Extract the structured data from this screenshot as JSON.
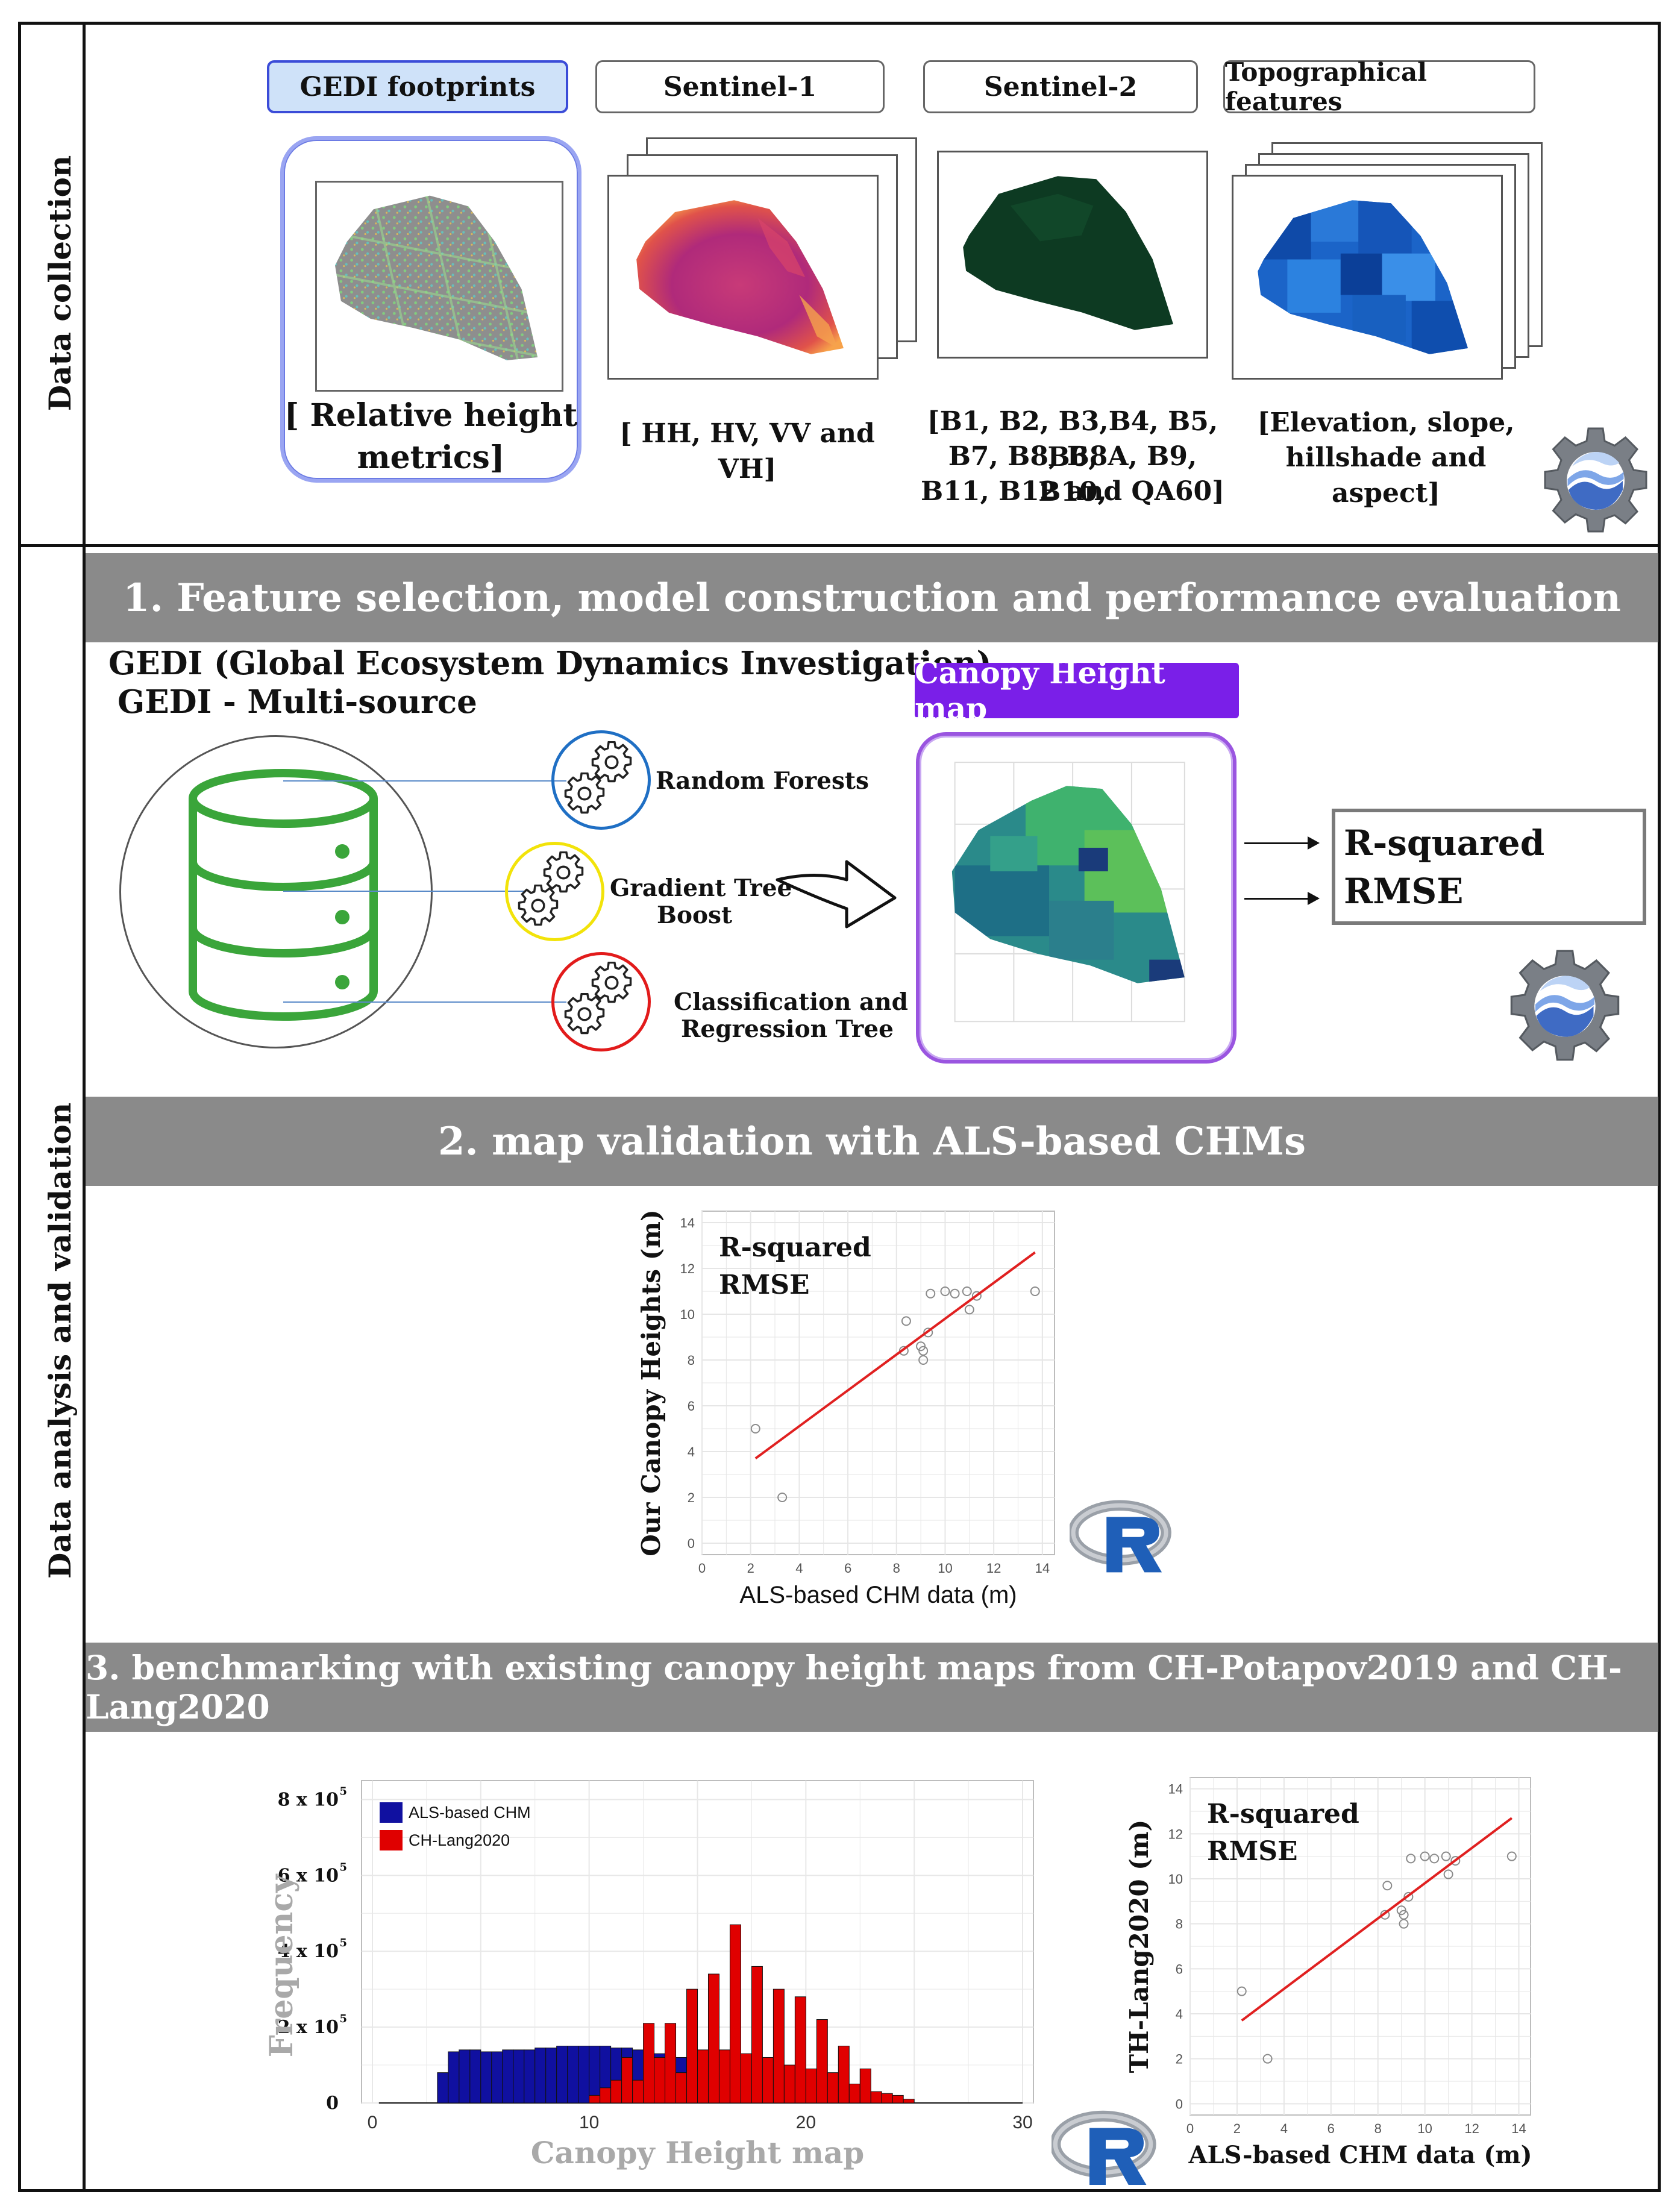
{
  "sections": {
    "collection_label": "Data collection",
    "analysis_label": "Data analysis and validation"
  },
  "sources": {
    "gedi": {
      "title": "GEDI footprints",
      "caption_line1": "[ Relative height",
      "caption_line2": "metrics]"
    },
    "s1": {
      "title": "Sentinel-1",
      "caption": "[ HH, HV, VV and VH]"
    },
    "s2": {
      "title": "Sentinel-2",
      "caption_line1": "[B1, B2, B3,B4, B5, B6,",
      "caption_line2": "B7, B8, B8A, B9, B10,",
      "caption_line3": "B11, B12 and QA60]"
    },
    "topo": {
      "title": "Topographical features",
      "caption_line1": "[Elevation, slope,",
      "caption_line2": "hillshade and aspect]"
    }
  },
  "step1": {
    "banner": "1. Feature selection, model construction and performance evaluation",
    "gedi_title": "GEDI (Global Ecosystem Dynamics Investigation)",
    "gedi_subtitle": "GEDI - Multi-source",
    "models": [
      "Random Forests",
      "Gradient Tree",
      "Boost",
      "Classification and",
      "Regression Tree"
    ],
    "map_label": "Canopy Height map",
    "metrics": [
      "R-squared",
      "RMSE"
    ]
  },
  "step2": {
    "banner": "2. map validation with ALS-based CHMs"
  },
  "step3": {
    "banner": "3. benchmarking with existing canopy height maps from CH-Potapov2019 and CH-Lang2020"
  },
  "colors": {
    "banner": "#8a8a8a",
    "gedi_box": "#cfe2f9",
    "gedi_border": "#3b4cd8",
    "map_border": "#8b42d8",
    "map_label_bg": "#7a1fe8",
    "db_green": "#3aa53a",
    "rf_circle": "#1f6fc4",
    "gtb_circle": "#f2e30a",
    "cart_circle": "#e21b1b",
    "fit_line": "#e02020",
    "als_bar": "#1010a0",
    "lang_bar": "#e00000"
  },
  "icons": [
    "gear-icon",
    "earth-engine-icon",
    "r-logo-icon",
    "database-icon",
    "arrow-icon"
  ],
  "chart_data": [
    {
      "type": "scatter",
      "xlabel": "ALS-based CHM data (m)",
      "ylabel": "Our Canopy Heights (m)",
      "annotations": [
        "R-squared",
        "RMSE"
      ],
      "x_ticks": [
        "0",
        "2",
        "4",
        "6",
        "8",
        "10",
        "12",
        "14"
      ],
      "y_ticks": [
        "0",
        "2",
        "4",
        "6",
        "8",
        "10",
        "12",
        "14"
      ],
      "xlim": [
        0,
        14.5
      ],
      "ylim": [
        -0.5,
        14.5
      ],
      "points": [
        [
          2.2,
          5.0
        ],
        [
          3.3,
          2.0
        ],
        [
          8.4,
          9.7
        ],
        [
          8.3,
          8.4
        ],
        [
          9.0,
          8.6
        ],
        [
          9.1,
          8.0
        ],
        [
          9.1,
          8.4
        ],
        [
          9.3,
          9.2
        ],
        [
          9.4,
          10.9
        ],
        [
          10.0,
          11.0
        ],
        [
          10.4,
          10.9
        ],
        [
          10.9,
          11.0
        ],
        [
          11.0,
          10.2
        ],
        [
          11.3,
          10.8
        ],
        [
          13.7,
          11.0
        ]
      ],
      "fit_line": [
        [
          2.2,
          3.7
        ],
        [
          13.7,
          12.7
        ]
      ],
      "grid": true
    },
    {
      "type": "bar",
      "xlabel": "Canopy Height map",
      "ylabel": "Frequency",
      "x_ticks": [
        "0",
        "10",
        "20",
        "30"
      ],
      "y_ticks": [
        "0",
        "2 x 10",
        "4 x 10",
        "6 x 10",
        "8 x 10"
      ],
      "y_tick_exponent": "5",
      "xlim": [
        -0.5,
        30.5
      ],
      "ylim": [
        0,
        8.5
      ],
      "y_unit": "x 10^5",
      "legend": "top-left",
      "bin_width": 0.5,
      "series": [
        {
          "name": "ALS-based CHM",
          "start": 3.0,
          "values": [
            0.8,
            1.35,
            1.4,
            1.4,
            1.35,
            1.35,
            1.4,
            1.4,
            1.4,
            1.45,
            1.45,
            1.5,
            1.5,
            1.5,
            1.5,
            1.5,
            1.45,
            1.45,
            1.4,
            1.35,
            1.3,
            1.25,
            1.2,
            1.1,
            1.0,
            0.9,
            0.8,
            0.7,
            0.55,
            0.45,
            0.35,
            0.3,
            0.25,
            0.2,
            0.15,
            0.12,
            0.1,
            0.08,
            0.06,
            0.05
          ]
        },
        {
          "name": "CH-Lang2020",
          "start": 10.0,
          "values": [
            0.2,
            0.4,
            0.6,
            1.2,
            0.6,
            2.1,
            1.2,
            2.1,
            0.8,
            3.0,
            1.4,
            3.4,
            1.4,
            4.7,
            1.3,
            3.6,
            1.2,
            3.0,
            1.0,
            2.8,
            0.9,
            2.2,
            0.8,
            1.5,
            0.5,
            0.9,
            0.3,
            0.25,
            0.2,
            0.1
          ]
        }
      ],
      "grid": true
    },
    {
      "type": "scatter",
      "xlabel": "ALS-based CHM data (m)",
      "ylabel": "TH-Lang2020 (m)",
      "annotations": [
        "R-squared",
        "RMSE"
      ],
      "x_ticks": [
        "0",
        "2",
        "4",
        "6",
        "8",
        "10",
        "12",
        "14"
      ],
      "y_ticks": [
        "0",
        "2",
        "4",
        "6",
        "8",
        "10",
        "12",
        "14"
      ],
      "xlim": [
        0,
        14.5
      ],
      "ylim": [
        -0.5,
        14.5
      ],
      "points": [
        [
          2.2,
          5.0
        ],
        [
          3.3,
          2.0
        ],
        [
          8.4,
          9.7
        ],
        [
          8.3,
          8.4
        ],
        [
          9.0,
          8.6
        ],
        [
          9.1,
          8.0
        ],
        [
          9.1,
          8.4
        ],
        [
          9.3,
          9.2
        ],
        [
          9.4,
          10.9
        ],
        [
          10.0,
          11.0
        ],
        [
          10.4,
          10.9
        ],
        [
          10.9,
          11.0
        ],
        [
          11.0,
          10.2
        ],
        [
          11.3,
          10.8
        ],
        [
          13.7,
          11.0
        ]
      ],
      "fit_line": [
        [
          2.2,
          3.7
        ],
        [
          13.7,
          12.7
        ]
      ],
      "grid": true
    }
  ]
}
